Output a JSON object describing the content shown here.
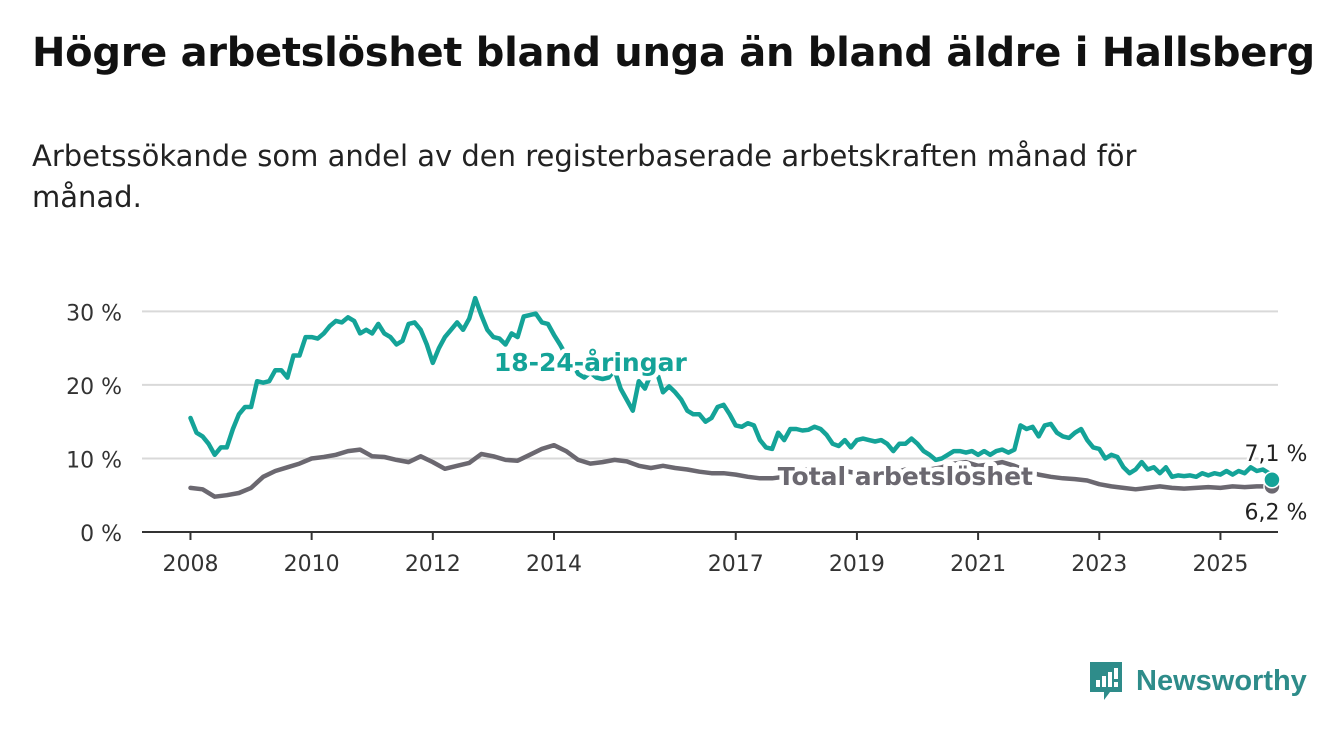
{
  "title": "Högre arbetslöshet bland unga än bland äldre i Hallsberg",
  "subtitle": "Arbetssökande som andel av den registerbaserade arbetskraften månad för månad.",
  "logo_text": "Newsworthy",
  "chart_data": {
    "type": "line",
    "y_ticks": [
      0,
      10,
      20,
      30
    ],
    "y_tick_labels": [
      "0 %",
      "10 %",
      "20 %",
      "30 %"
    ],
    "x_ticks": [
      2008,
      2010,
      2012,
      2014,
      2017,
      2019,
      2021,
      2023,
      2025
    ],
    "x_tick_labels": [
      "2008",
      "2010",
      "2012",
      "2014",
      "2017",
      "2019",
      "2021",
      "2023",
      "2025"
    ],
    "x_range": [
      2007.2,
      2025.95
    ],
    "y_range": [
      0,
      32.5
    ],
    "grid": true,
    "series": [
      {
        "name": "18-24-åringar",
        "color": "#14a398",
        "end_label": "7,1 %",
        "points": [
          [
            2008.0,
            15.5
          ],
          [
            2008.1,
            13.5
          ],
          [
            2008.2,
            13.0
          ],
          [
            2008.3,
            12.0
          ],
          [
            2008.4,
            10.5
          ],
          [
            2008.5,
            11.5
          ],
          [
            2008.6,
            11.5
          ],
          [
            2008.7,
            14.0
          ],
          [
            2008.8,
            16.0
          ],
          [
            2008.9,
            17.0
          ],
          [
            2009.0,
            17.0
          ],
          [
            2009.1,
            20.5
          ],
          [
            2009.2,
            20.3
          ],
          [
            2009.3,
            20.5
          ],
          [
            2009.4,
            22.0
          ],
          [
            2009.5,
            22.0
          ],
          [
            2009.6,
            21.0
          ],
          [
            2009.7,
            24.0
          ],
          [
            2009.8,
            24.0
          ],
          [
            2009.9,
            26.5
          ],
          [
            2010.0,
            26.5
          ],
          [
            2010.1,
            26.3
          ],
          [
            2010.2,
            27.0
          ],
          [
            2010.3,
            28.0
          ],
          [
            2010.4,
            28.7
          ],
          [
            2010.5,
            28.5
          ],
          [
            2010.6,
            29.2
          ],
          [
            2010.7,
            28.7
          ],
          [
            2010.8,
            27.0
          ],
          [
            2010.9,
            27.5
          ],
          [
            2011.0,
            27.0
          ],
          [
            2011.1,
            28.3
          ],
          [
            2011.2,
            27.0
          ],
          [
            2011.3,
            26.5
          ],
          [
            2011.4,
            25.5
          ],
          [
            2011.5,
            26.0
          ],
          [
            2011.6,
            28.3
          ],
          [
            2011.7,
            28.5
          ],
          [
            2011.8,
            27.5
          ],
          [
            2011.9,
            25.5
          ],
          [
            2012.0,
            23.0
          ],
          [
            2012.1,
            25.0
          ],
          [
            2012.2,
            26.5
          ],
          [
            2012.3,
            27.5
          ],
          [
            2012.4,
            28.5
          ],
          [
            2012.5,
            27.5
          ],
          [
            2012.6,
            29.0
          ],
          [
            2012.7,
            31.8
          ],
          [
            2012.8,
            29.5
          ],
          [
            2012.9,
            27.5
          ],
          [
            2013.0,
            26.5
          ],
          [
            2013.1,
            26.3
          ],
          [
            2013.2,
            25.5
          ],
          [
            2013.3,
            27.0
          ],
          [
            2013.4,
            26.5
          ],
          [
            2013.5,
            29.3
          ],
          [
            2013.6,
            29.5
          ],
          [
            2013.7,
            29.7
          ],
          [
            2013.8,
            28.5
          ],
          [
            2013.9,
            28.3
          ],
          [
            2014.0,
            26.8
          ],
          [
            2014.1,
            25.5
          ],
          [
            2014.2,
            24.0
          ],
          [
            2014.3,
            23.0
          ],
          [
            2014.4,
            21.5
          ],
          [
            2014.5,
            21.0
          ],
          [
            2014.6,
            21.7
          ],
          [
            2014.7,
            21.0
          ],
          [
            2014.8,
            20.8
          ],
          [
            2014.9,
            21.0
          ],
          [
            2015.0,
            22.0
          ],
          [
            2015.1,
            19.5
          ],
          [
            2015.2,
            18.0
          ],
          [
            2015.3,
            16.5
          ],
          [
            2015.4,
            20.5
          ],
          [
            2015.5,
            19.5
          ],
          [
            2015.6,
            21.5
          ],
          [
            2015.7,
            21.7
          ],
          [
            2015.8,
            19.0
          ],
          [
            2015.9,
            19.8
          ],
          [
            2016.0,
            19.0
          ],
          [
            2016.1,
            18.0
          ],
          [
            2016.2,
            16.5
          ],
          [
            2016.3,
            16.0
          ],
          [
            2016.4,
            16.0
          ],
          [
            2016.5,
            15.0
          ],
          [
            2016.6,
            15.5
          ],
          [
            2016.7,
            17.0
          ],
          [
            2016.8,
            17.3
          ],
          [
            2016.9,
            16.0
          ],
          [
            2017.0,
            14.5
          ],
          [
            2017.1,
            14.3
          ],
          [
            2017.2,
            14.8
          ],
          [
            2017.3,
            14.5
          ],
          [
            2017.4,
            12.5
          ],
          [
            2017.5,
            11.5
          ],
          [
            2017.6,
            11.3
          ],
          [
            2017.7,
            13.5
          ],
          [
            2017.8,
            12.5
          ],
          [
            2017.9,
            14.0
          ],
          [
            2018.0,
            14.0
          ],
          [
            2018.1,
            13.8
          ],
          [
            2018.2,
            13.9
          ],
          [
            2018.3,
            14.3
          ],
          [
            2018.4,
            14.0
          ],
          [
            2018.5,
            13.2
          ],
          [
            2018.6,
            12.0
          ],
          [
            2018.7,
            11.7
          ],
          [
            2018.8,
            12.5
          ],
          [
            2018.9,
            11.5
          ],
          [
            2019.0,
            12.5
          ],
          [
            2019.1,
            12.7
          ],
          [
            2019.2,
            12.5
          ],
          [
            2019.3,
            12.3
          ],
          [
            2019.4,
            12.5
          ],
          [
            2019.5,
            12.0
          ],
          [
            2019.6,
            11.0
          ],
          [
            2019.7,
            12.0
          ],
          [
            2019.8,
            12.0
          ],
          [
            2019.9,
            12.7
          ],
          [
            2020.0,
            12.0
          ],
          [
            2020.1,
            11.0
          ],
          [
            2020.2,
            10.5
          ],
          [
            2020.3,
            9.8
          ],
          [
            2020.4,
            10.0
          ],
          [
            2020.5,
            10.5
          ],
          [
            2020.6,
            11.0
          ],
          [
            2020.7,
            11.0
          ],
          [
            2020.8,
            10.8
          ],
          [
            2020.9,
            11.0
          ],
          [
            2021.0,
            10.5
          ],
          [
            2021.1,
            11.0
          ],
          [
            2021.2,
            10.5
          ],
          [
            2021.3,
            11.0
          ],
          [
            2021.4,
            11.2
          ],
          [
            2021.5,
            10.8
          ],
          [
            2021.6,
            11.2
          ],
          [
            2021.7,
            14.5
          ],
          [
            2021.8,
            14.0
          ],
          [
            2021.9,
            14.3
          ],
          [
            2022.0,
            13.0
          ],
          [
            2022.1,
            14.5
          ],
          [
            2022.2,
            14.7
          ],
          [
            2022.3,
            13.5
          ],
          [
            2022.4,
            13.0
          ],
          [
            2022.5,
            12.8
          ],
          [
            2022.6,
            13.5
          ],
          [
            2022.7,
            14.0
          ],
          [
            2022.8,
            12.5
          ],
          [
            2022.9,
            11.5
          ],
          [
            2023.0,
            11.3
          ],
          [
            2023.1,
            10.0
          ],
          [
            2023.2,
            10.5
          ],
          [
            2023.3,
            10.2
          ],
          [
            2023.4,
            8.8
          ],
          [
            2023.5,
            8.0
          ],
          [
            2023.6,
            8.5
          ],
          [
            2023.7,
            9.5
          ],
          [
            2023.8,
            8.5
          ],
          [
            2023.9,
            8.8
          ],
          [
            2024.0,
            8.0
          ],
          [
            2024.1,
            8.8
          ],
          [
            2024.2,
            7.5
          ],
          [
            2024.3,
            7.7
          ],
          [
            2024.4,
            7.6
          ],
          [
            2024.5,
            7.7
          ],
          [
            2024.6,
            7.5
          ],
          [
            2024.7,
            8.0
          ],
          [
            2024.8,
            7.7
          ],
          [
            2024.9,
            8.0
          ],
          [
            2025.0,
            7.8
          ],
          [
            2025.1,
            8.3
          ],
          [
            2025.2,
            7.8
          ],
          [
            2025.3,
            8.3
          ],
          [
            2025.4,
            8.0
          ],
          [
            2025.5,
            8.8
          ],
          [
            2025.6,
            8.3
          ],
          [
            2025.7,
            8.5
          ],
          [
            2025.8,
            8.0
          ],
          [
            2025.85,
            7.1
          ]
        ]
      },
      {
        "name": "Total arbetslöshet",
        "color": "#6b6870",
        "end_label": "6,2 %",
        "points": [
          [
            2008.0,
            6.0
          ],
          [
            2008.2,
            5.8
          ],
          [
            2008.4,
            4.8
          ],
          [
            2008.6,
            5.0
          ],
          [
            2008.8,
            5.3
          ],
          [
            2009.0,
            6.0
          ],
          [
            2009.2,
            7.5
          ],
          [
            2009.4,
            8.3
          ],
          [
            2009.6,
            8.8
          ],
          [
            2009.8,
            9.3
          ],
          [
            2010.0,
            10.0
          ],
          [
            2010.2,
            10.2
          ],
          [
            2010.4,
            10.5
          ],
          [
            2010.6,
            11.0
          ],
          [
            2010.8,
            11.2
          ],
          [
            2011.0,
            10.3
          ],
          [
            2011.2,
            10.2
          ],
          [
            2011.4,
            9.8
          ],
          [
            2011.6,
            9.5
          ],
          [
            2011.8,
            10.3
          ],
          [
            2012.0,
            9.5
          ],
          [
            2012.2,
            8.6
          ],
          [
            2012.4,
            9.0
          ],
          [
            2012.6,
            9.4
          ],
          [
            2012.8,
            10.6
          ],
          [
            2013.0,
            10.3
          ],
          [
            2013.2,
            9.8
          ],
          [
            2013.4,
            9.7
          ],
          [
            2013.6,
            10.5
          ],
          [
            2013.8,
            11.3
          ],
          [
            2014.0,
            11.8
          ],
          [
            2014.2,
            11.0
          ],
          [
            2014.4,
            9.8
          ],
          [
            2014.6,
            9.3
          ],
          [
            2014.8,
            9.5
          ],
          [
            2015.0,
            9.8
          ],
          [
            2015.2,
            9.6
          ],
          [
            2015.4,
            9.0
          ],
          [
            2015.6,
            8.7
          ],
          [
            2015.8,
            9.0
          ],
          [
            2016.0,
            8.7
          ],
          [
            2016.2,
            8.5
          ],
          [
            2016.4,
            8.2
          ],
          [
            2016.6,
            8.0
          ],
          [
            2016.8,
            8.0
          ],
          [
            2017.0,
            7.8
          ],
          [
            2017.2,
            7.5
          ],
          [
            2017.4,
            7.3
          ],
          [
            2017.6,
            7.3
          ],
          [
            2017.8,
            7.5
          ],
          [
            2018.0,
            8.3
          ],
          [
            2018.2,
            8.5
          ],
          [
            2018.4,
            8.0
          ],
          [
            2018.6,
            8.2
          ],
          [
            2018.8,
            8.3
          ],
          [
            2019.0,
            8.0
          ],
          [
            2019.2,
            7.8
          ],
          [
            2019.4,
            7.7
          ],
          [
            2019.6,
            8.0
          ],
          [
            2019.8,
            8.5
          ],
          [
            2020.0,
            8.0
          ],
          [
            2020.2,
            8.5
          ],
          [
            2020.4,
            8.8
          ],
          [
            2020.6,
            9.3
          ],
          [
            2020.8,
            9.5
          ],
          [
            2021.0,
            9.0
          ],
          [
            2021.2,
            9.2
          ],
          [
            2021.4,
            9.5
          ],
          [
            2021.6,
            9.0
          ],
          [
            2021.8,
            8.3
          ],
          [
            2022.0,
            7.8
          ],
          [
            2022.2,
            7.5
          ],
          [
            2022.4,
            7.3
          ],
          [
            2022.6,
            7.2
          ],
          [
            2022.8,
            7.0
          ],
          [
            2023.0,
            6.5
          ],
          [
            2023.2,
            6.2
          ],
          [
            2023.4,
            6.0
          ],
          [
            2023.6,
            5.8
          ],
          [
            2023.8,
            6.0
          ],
          [
            2024.0,
            6.2
          ],
          [
            2024.2,
            6.0
          ],
          [
            2024.4,
            5.9
          ],
          [
            2024.6,
            6.0
          ],
          [
            2024.8,
            6.1
          ],
          [
            2025.0,
            6.0
          ],
          [
            2025.2,
            6.2
          ],
          [
            2025.4,
            6.1
          ],
          [
            2025.6,
            6.2
          ],
          [
            2025.85,
            6.2
          ]
        ]
      }
    ],
    "annotations": [
      {
        "text": "18-24-åringar",
        "series": 0,
        "x": 2014.6,
        "y": 23.0
      },
      {
        "text": "Total arbetslöshet",
        "series": 1,
        "x": 2019.8,
        "y": 7.5
      }
    ]
  }
}
